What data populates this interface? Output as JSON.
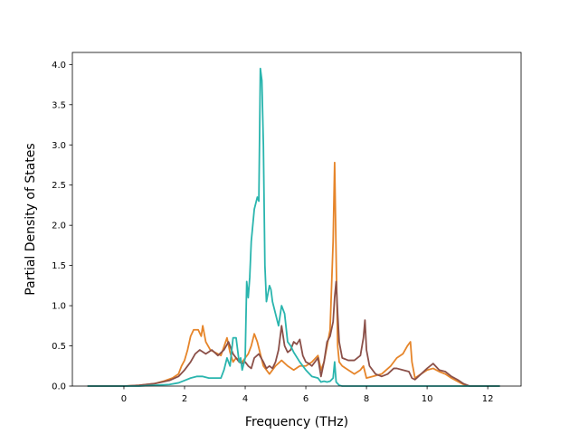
{
  "chart_data": {
    "type": "line",
    "title": "",
    "xlabel": "Frequency (THz)",
    "ylabel": "Partial Density of States",
    "xlim": [
      -1.7,
      13.1
    ],
    "ylim": [
      0,
      4.15
    ],
    "xticks": [
      0,
      2,
      4,
      6,
      8,
      10,
      12
    ],
    "yticks": [
      0.0,
      0.5,
      1.0,
      1.5,
      2.0,
      2.5,
      3.0,
      3.5,
      4.0
    ],
    "grid": false,
    "legend": "none",
    "series": [
      {
        "color": "#e6852a",
        "x": [
          -1.2,
          0.0,
          0.5,
          1.0,
          1.3,
          1.6,
          1.8,
          1.9,
          2.0,
          2.1,
          2.2,
          2.3,
          2.45,
          2.55,
          2.6,
          2.7,
          2.85,
          3.0,
          3.2,
          3.4,
          3.5,
          3.6,
          3.7,
          3.8,
          3.9,
          4.0,
          4.1,
          4.2,
          4.3,
          4.4,
          4.5,
          4.6,
          4.7,
          4.8,
          4.9,
          5.0,
          5.2,
          5.4,
          5.6,
          5.8,
          6.0,
          6.2,
          6.4,
          6.5,
          6.6,
          6.7,
          6.8,
          6.9,
          6.95,
          7.0,
          7.05,
          7.1,
          7.2,
          7.4,
          7.6,
          7.8,
          7.9,
          8.0,
          8.2,
          8.5,
          8.8,
          9.0,
          9.2,
          9.35,
          9.45,
          9.5,
          9.6,
          9.8,
          10.0,
          10.2,
          10.4,
          10.6,
          10.8,
          11.0,
          11.2,
          11.4,
          12.4
        ],
        "y": [
          0,
          0,
          0.01,
          0.03,
          0.06,
          0.1,
          0.15,
          0.25,
          0.32,
          0.45,
          0.62,
          0.7,
          0.7,
          0.62,
          0.75,
          0.55,
          0.45,
          0.42,
          0.38,
          0.6,
          0.42,
          0.3,
          0.35,
          0.32,
          0.3,
          0.35,
          0.4,
          0.5,
          0.65,
          0.55,
          0.4,
          0.25,
          0.2,
          0.15,
          0.2,
          0.25,
          0.32,
          0.25,
          0.2,
          0.25,
          0.25,
          0.3,
          0.38,
          0.2,
          0.3,
          0.5,
          0.7,
          1.8,
          2.78,
          1.6,
          0.5,
          0.3,
          0.25,
          0.2,
          0.15,
          0.2,
          0.25,
          0.1,
          0.12,
          0.15,
          0.25,
          0.35,
          0.4,
          0.5,
          0.55,
          0.3,
          0.1,
          0.15,
          0.2,
          0.22,
          0.18,
          0.15,
          0.1,
          0.06,
          0.02,
          0,
          0
        ]
      },
      {
        "color": "#8b5049",
        "x": [
          -1.2,
          0.0,
          0.5,
          1.0,
          1.5,
          1.8,
          2.0,
          2.2,
          2.35,
          2.5,
          2.7,
          2.9,
          3.1,
          3.3,
          3.45,
          3.6,
          3.8,
          3.9,
          4.0,
          4.1,
          4.2,
          4.3,
          4.45,
          4.6,
          4.7,
          4.8,
          4.9,
          5.0,
          5.1,
          5.2,
          5.3,
          5.4,
          5.5,
          5.6,
          5.7,
          5.8,
          5.9,
          6.0,
          6.1,
          6.2,
          6.3,
          6.4,
          6.5,
          6.6,
          6.7,
          6.8,
          6.9,
          6.95,
          7.0,
          7.05,
          7.1,
          7.2,
          7.4,
          7.6,
          7.8,
          7.9,
          7.95,
          8.0,
          8.1,
          8.3,
          8.5,
          8.7,
          8.9,
          9.0,
          9.2,
          9.4,
          9.5,
          9.6,
          9.8,
          10.0,
          10.2,
          10.4,
          10.6,
          10.8,
          11.0,
          11.2,
          11.4,
          12.4
        ],
        "y": [
          0,
          0,
          0.01,
          0.03,
          0.07,
          0.12,
          0.2,
          0.3,
          0.4,
          0.45,
          0.4,
          0.45,
          0.38,
          0.45,
          0.55,
          0.4,
          0.3,
          0.28,
          0.3,
          0.25,
          0.22,
          0.35,
          0.4,
          0.3,
          0.22,
          0.25,
          0.22,
          0.3,
          0.45,
          0.75,
          0.5,
          0.42,
          0.45,
          0.55,
          0.52,
          0.58,
          0.38,
          0.3,
          0.28,
          0.25,
          0.3,
          0.35,
          0.12,
          0.3,
          0.55,
          0.62,
          0.8,
          1.1,
          1.3,
          0.9,
          0.55,
          0.35,
          0.32,
          0.32,
          0.38,
          0.6,
          0.82,
          0.45,
          0.25,
          0.15,
          0.12,
          0.15,
          0.22,
          0.22,
          0.2,
          0.18,
          0.1,
          0.08,
          0.15,
          0.22,
          0.28,
          0.2,
          0.18,
          0.12,
          0.08,
          0.03,
          0,
          0
        ]
      },
      {
        "color": "#2ab5ae",
        "x": [
          -1.2,
          0.0,
          0.5,
          1.0,
          1.5,
          1.8,
          2.0,
          2.2,
          2.4,
          2.6,
          2.8,
          3.0,
          3.2,
          3.3,
          3.4,
          3.5,
          3.6,
          3.7,
          3.8,
          3.85,
          3.9,
          4.0,
          4.05,
          4.1,
          4.15,
          4.2,
          4.3,
          4.4,
          4.45,
          4.5,
          4.55,
          4.6,
          4.65,
          4.7,
          4.75,
          4.8,
          4.85,
          4.9,
          5.0,
          5.1,
          5.2,
          5.3,
          5.4,
          5.5,
          5.6,
          5.8,
          6.0,
          6.2,
          6.4,
          6.5,
          6.6,
          6.7,
          6.8,
          6.9,
          6.95,
          7.0,
          7.1,
          7.2,
          7.6,
          8.0,
          8.5,
          9.0,
          10.0,
          11.0,
          12.4
        ],
        "y": [
          0,
          0,
          0,
          0.01,
          0.02,
          0.04,
          0.07,
          0.1,
          0.12,
          0.12,
          0.1,
          0.1,
          0.1,
          0.2,
          0.35,
          0.25,
          0.6,
          0.6,
          0.3,
          0.35,
          0.2,
          0.35,
          1.3,
          1.1,
          1.35,
          1.8,
          2.2,
          2.35,
          2.3,
          3.95,
          3.8,
          3.0,
          1.5,
          1.05,
          1.15,
          1.25,
          1.2,
          1.05,
          0.9,
          0.75,
          1.0,
          0.9,
          0.55,
          0.5,
          0.42,
          0.3,
          0.2,
          0.12,
          0.1,
          0.05,
          0.06,
          0.05,
          0.06,
          0.1,
          0.3,
          0.05,
          0.01,
          0,
          0,
          0,
          0,
          0,
          0,
          0,
          0
        ]
      }
    ]
  }
}
